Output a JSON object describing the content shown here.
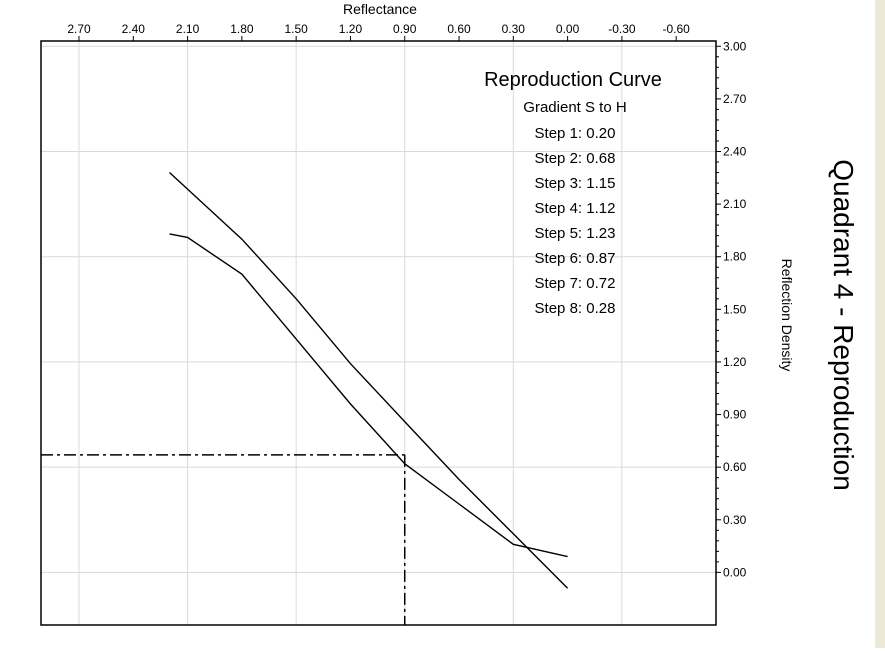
{
  "side_title": "Quadrant 4 - Reproduction",
  "chart_data": {
    "type": "line",
    "x_axis": {
      "label": "Reflectance",
      "position": "top",
      "reversed": true,
      "range": [
        2.91,
        -0.82
      ],
      "ticks": [
        2.7,
        2.4,
        2.1,
        1.8,
        1.5,
        1.2,
        0.9,
        0.6,
        0.3,
        0.0,
        -0.3,
        -0.6
      ],
      "tick_labels": [
        "2.70",
        "2.40",
        "2.10",
        "1.80",
        "1.50",
        "1.20",
        "0.90",
        "0.60",
        "0.30",
        "0.00",
        "-0.30",
        "-0.60"
      ]
    },
    "y_axis": {
      "label": "Reflection Density",
      "position": "right",
      "range": [
        -0.3,
        3.03
      ],
      "ticks": [
        0.0,
        0.3,
        0.6,
        0.9,
        1.2,
        1.5,
        1.8,
        2.1,
        2.4,
        2.7,
        3.0
      ],
      "tick_labels": [
        "0.00",
        "0.30",
        "0.60",
        "0.90",
        "1.20",
        "1.50",
        "1.80",
        "2.10",
        "2.40",
        "2.70",
        "3.00"
      ]
    },
    "grid": true,
    "annotation": {
      "title": "Reproduction Curve",
      "subtitle": "Gradient S to H",
      "steps": [
        "Step 1: 0.20",
        "Step 2: 0.68",
        "Step 3: 1.15",
        "Step 4: 1.12",
        "Step 5: 1.23",
        "Step 6: 0.87",
        "Step 7: 0.72",
        "Step 8: 0.28"
      ]
    },
    "series": [
      {
        "style": "solid",
        "x": [
          2.2,
          1.8,
          1.5,
          1.2,
          0.9,
          0.6,
          0.3,
          0.0
        ],
        "y": [
          2.28,
          1.9,
          1.56,
          1.19,
          0.86,
          0.53,
          0.22,
          -0.09
        ]
      },
      {
        "style": "solid",
        "x": [
          2.2,
          2.1,
          1.8,
          1.5,
          1.2,
          0.9,
          0.6,
          0.3,
          0.0
        ],
        "y": [
          1.93,
          1.91,
          1.7,
          1.33,
          0.96,
          0.62,
          0.39,
          0.16,
          0.09
        ]
      }
    ],
    "reference_lines": [
      {
        "style": "dash-dot",
        "orientation": "horizontal",
        "y": 0.67,
        "x_from": 2.91,
        "x_to": 0.9
      },
      {
        "style": "dash-dot",
        "orientation": "vertical",
        "x": 0.9,
        "y_from": 0.67,
        "y_to": -0.3
      }
    ],
    "colors": {
      "line": "#000000",
      "grid": "#d9d9d9",
      "background": "#ffffff"
    }
  }
}
